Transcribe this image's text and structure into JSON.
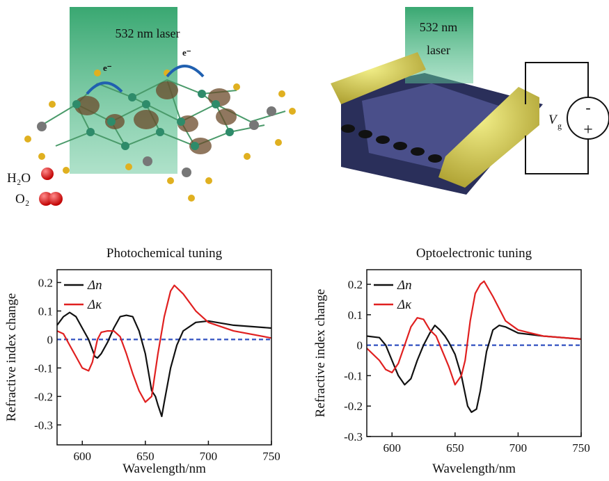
{
  "illustrations": {
    "left_laser": "532 nm laser",
    "electron_1": "e⁻",
    "electron_2": "e⁻",
    "water": "H₂O",
    "oxygen": "O₂",
    "right_laser_1": "532 nm",
    "right_laser_2": "laser",
    "gate_symbol": "V",
    "gate_subscript": "g",
    "minus": "-",
    "plus": "+"
  },
  "chart_data": [
    {
      "type": "line",
      "title": "Photochemical tuning",
      "x_label": "Wavelength/nm",
      "y_label": "Refractive index change",
      "xlim": [
        580,
        750
      ],
      "xticks": [
        600,
        650,
        700,
        750
      ],
      "ylim": [
        -0.37,
        0.245
      ],
      "yticks": [
        0.2,
        0.1,
        0,
        -0.1,
        -0.2,
        -0.3
      ],
      "reference_line": 0,
      "reference_color": "#3050c0",
      "series": [
        {
          "name": "Δn",
          "color": "#111111",
          "x": [
            580,
            585,
            590,
            595,
            600,
            605,
            610,
            612,
            615,
            620,
            625,
            630,
            635,
            640,
            645,
            650,
            655,
            658,
            660,
            663,
            665,
            670,
            675,
            680,
            690,
            700,
            720,
            750
          ],
          "values": [
            0.05,
            0.08,
            0.095,
            0.08,
            0.04,
            0,
            -0.06,
            -0.065,
            -0.05,
            -0.01,
            0.04,
            0.08,
            0.085,
            0.08,
            0.03,
            -0.05,
            -0.18,
            -0.2,
            -0.23,
            -0.27,
            -0.22,
            -0.1,
            -0.02,
            0.03,
            0.06,
            0.065,
            0.05,
            0.04
          ]
        },
        {
          "name": "Δκ",
          "color": "#e02020",
          "x": [
            580,
            585,
            590,
            595,
            600,
            605,
            608,
            612,
            615,
            620,
            625,
            630,
            635,
            640,
            645,
            650,
            655,
            660,
            665,
            670,
            673,
            680,
            690,
            700,
            720,
            750
          ],
          "values": [
            0.03,
            0.02,
            -0.02,
            -0.06,
            -0.1,
            -0.11,
            -0.08,
            0,
            0.025,
            0.03,
            0.03,
            0.01,
            -0.05,
            -0.12,
            -0.18,
            -0.22,
            -0.2,
            -0.05,
            0.08,
            0.17,
            0.19,
            0.16,
            0.1,
            0.06,
            0.03,
            0.005
          ]
        }
      ]
    },
    {
      "type": "line",
      "title": "Optoelectronic tuning",
      "x_label": "Wavelength/nm",
      "y_label": "Refractive index change",
      "xlim": [
        580,
        750
      ],
      "xticks": [
        600,
        650,
        700,
        750
      ],
      "ylim": [
        -0.3,
        0.248
      ],
      "yticks": [
        0.2,
        0.1,
        0,
        -0.1,
        -0.2,
        -0.3
      ],
      "reference_line": 0,
      "reference_color": "#3050c0",
      "series": [
        {
          "name": "Δn",
          "color": "#111111",
          "x": [
            580,
            590,
            595,
            600,
            605,
            610,
            615,
            620,
            625,
            630,
            634,
            638,
            642,
            645,
            650,
            655,
            660,
            663,
            667,
            670,
            675,
            680,
            685,
            690,
            700,
            720,
            750
          ],
          "values": [
            0.03,
            0.025,
            0,
            -0.05,
            -0.1,
            -0.13,
            -0.11,
            -0.05,
            0,
            0.04,
            0.065,
            0.05,
            0.03,
            0.01,
            -0.03,
            -0.1,
            -0.2,
            -0.22,
            -0.21,
            -0.15,
            -0.02,
            0.05,
            0.065,
            0.06,
            0.04,
            0.03,
            0.02
          ]
        },
        {
          "name": "Δκ",
          "color": "#e02020",
          "x": [
            580,
            590,
            595,
            600,
            605,
            610,
            615,
            620,
            625,
            630,
            635,
            640,
            645,
            650,
            655,
            658,
            662,
            666,
            670,
            673,
            680,
            690,
            700,
            720,
            750
          ],
          "values": [
            -0.01,
            -0.05,
            -0.08,
            -0.09,
            -0.06,
            0,
            0.06,
            0.09,
            0.085,
            0.05,
            0.03,
            -0.02,
            -0.07,
            -0.13,
            -0.1,
            -0.05,
            0.08,
            0.17,
            0.2,
            0.21,
            0.16,
            0.08,
            0.05,
            0.03,
            0.02
          ]
        }
      ]
    }
  ]
}
